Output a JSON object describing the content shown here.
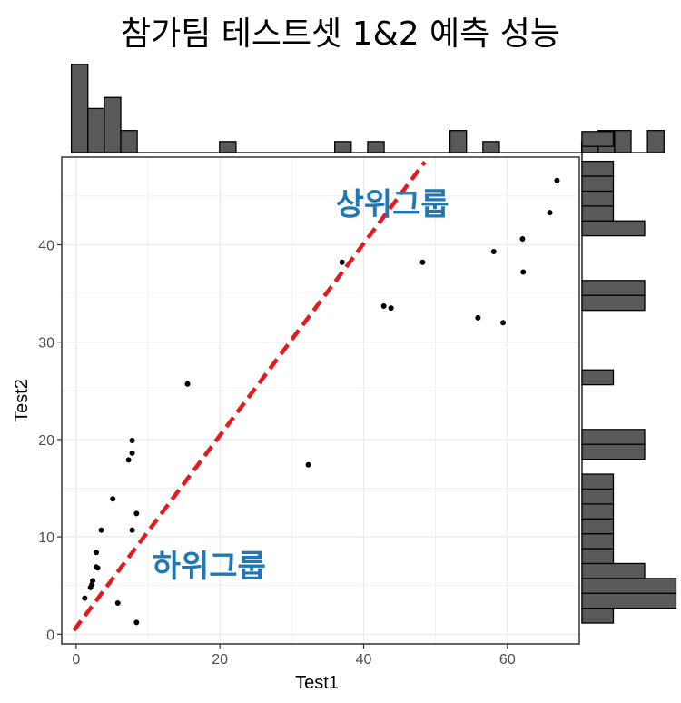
{
  "title": "참가팀 테스트셋 1&2 예측 성능",
  "chart_data": {
    "type": "scatter",
    "title": "참가팀 테스트셋 1&2 예측 성능",
    "xlabel": "Test1",
    "ylabel": "Test2",
    "xlim": [
      -2,
      70
    ],
    "ylim": [
      -1,
      49
    ],
    "x_ticks": [
      0,
      20,
      40,
      60
    ],
    "y_ticks": [
      0,
      10,
      20,
      30,
      40
    ],
    "grid": true,
    "points": [
      {
        "x": 1.2,
        "y": 3.7
      },
      {
        "x": 2.0,
        "y": 4.8
      },
      {
        "x": 2.3,
        "y": 5.5
      },
      {
        "x": 2.2,
        "y": 5.1
      },
      {
        "x": 2.8,
        "y": 6.9
      },
      {
        "x": 3.0,
        "y": 6.8
      },
      {
        "x": 2.8,
        "y": 8.4
      },
      {
        "x": 3.5,
        "y": 10.7
      },
      {
        "x": 5.1,
        "y": 13.9
      },
      {
        "x": 5.8,
        "y": 3.2
      },
      {
        "x": 7.3,
        "y": 17.9
      },
      {
        "x": 7.8,
        "y": 18.6
      },
      {
        "x": 7.8,
        "y": 19.9
      },
      {
        "x": 7.8,
        "y": 10.7
      },
      {
        "x": 8.4,
        "y": 12.4
      },
      {
        "x": 8.4,
        "y": 1.2
      },
      {
        "x": 15.5,
        "y": 25.7
      },
      {
        "x": 32.3,
        "y": 17.4
      },
      {
        "x": 37.0,
        "y": 38.2
      },
      {
        "x": 42.8,
        "y": 33.7
      },
      {
        "x": 43.8,
        "y": 33.5
      },
      {
        "x": 48.2,
        "y": 38.2
      },
      {
        "x": 55.9,
        "y": 32.5
      },
      {
        "x": 58.1,
        "y": 39.3
      },
      {
        "x": 59.4,
        "y": 32.0
      },
      {
        "x": 62.1,
        "y": 40.6
      },
      {
        "x": 62.2,
        "y": 37.2
      },
      {
        "x": 65.9,
        "y": 43.3
      },
      {
        "x": 66.9,
        "y": 46.6
      }
    ],
    "reference_line": {
      "style": "dashed",
      "color": "#e41a1c",
      "x": [
        -0.3,
        48.5
      ],
      "y": [
        0.4,
        48.5
      ]
    },
    "annotations": [
      {
        "text": "상위그룹",
        "x": 44,
        "y": 44.2
      },
      {
        "text": "하위그룹",
        "x": 18.5,
        "y": 7
      }
    ],
    "marginal_x_histogram": {
      "bin_start": -0.66,
      "bin_width": 2.29,
      "counts": [
        4,
        2,
        2.5,
        1,
        0,
        0,
        0,
        0,
        0,
        0.5,
        0,
        0,
        0,
        0,
        0,
        0,
        0.5,
        0,
        0.5,
        0,
        0,
        0,
        0,
        1,
        0,
        0.5,
        0,
        0,
        0,
        0,
        0,
        0.5,
        1,
        1,
        0,
        1
      ]
    },
    "marginal_y_histogram": {
      "bin_start": 1.14,
      "bin_width": 1.53,
      "counts": [
        1,
        3,
        3,
        2,
        1,
        1,
        1,
        1,
        1,
        1,
        0,
        2,
        2,
        0,
        0,
        0,
        1,
        0,
        0,
        0,
        0,
        2,
        2,
        0,
        0,
        0,
        2,
        1,
        1,
        1,
        1,
        0,
        1
      ]
    },
    "colors": {
      "points": "#000000",
      "bars_fill": "#595959",
      "bars_stroke": "#000000",
      "grid": "#ebebeb",
      "annotation": "#1f77b4"
    }
  }
}
